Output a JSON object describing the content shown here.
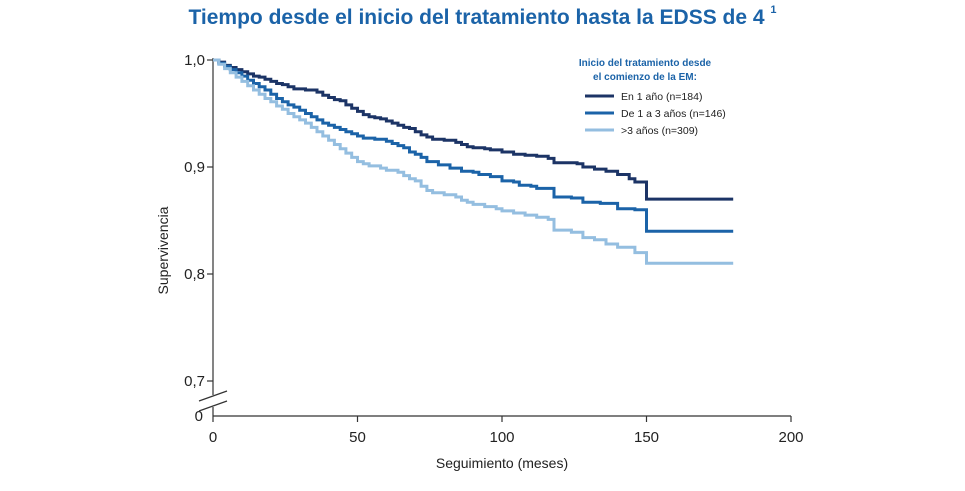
{
  "chart_data": {
    "type": "line",
    "title": "Tiempo desde el inicio del tratamiento hasta la EDSS de 4",
    "title_superscript": "1",
    "xlabel": "Seguimiento (meses)",
    "ylabel": "Supervivencia",
    "xlim": [
      0,
      200
    ],
    "ylim": [
      0.7,
      1.0
    ],
    "y_axis_break": true,
    "x_ticks": [
      "0",
      "50",
      "100",
      "150",
      "200"
    ],
    "y_ticks": [
      "1,0",
      "0,9",
      "0,8",
      "0,7",
      "0"
    ],
    "legend_title_line1": "Inicio del tratamiento desde",
    "legend_title_line2": "el comienzo de la EM:",
    "legend_position": "top-right",
    "grid": false,
    "series": [
      {
        "name": "En 1 año (n=184)",
        "color": "#1c3466",
        "points": [
          [
            0,
            1.0
          ],
          [
            2,
            0.998
          ],
          [
            4,
            0.995
          ],
          [
            6,
            0.993
          ],
          [
            8,
            0.991
          ],
          [
            10,
            0.989
          ],
          [
            12,
            0.987
          ],
          [
            14,
            0.985
          ],
          [
            16,
            0.984
          ],
          [
            18,
            0.982
          ],
          [
            20,
            0.98
          ],
          [
            22,
            0.978
          ],
          [
            24,
            0.977
          ],
          [
            26,
            0.975
          ],
          [
            28,
            0.973
          ],
          [
            32,
            0.972
          ],
          [
            36,
            0.97
          ],
          [
            38,
            0.967
          ],
          [
            40,
            0.965
          ],
          [
            42,
            0.963
          ],
          [
            44,
            0.962
          ],
          [
            46,
            0.958
          ],
          [
            48,
            0.955
          ],
          [
            50,
            0.952
          ],
          [
            52,
            0.949
          ],
          [
            54,
            0.947
          ],
          [
            56,
            0.946
          ],
          [
            58,
            0.945
          ],
          [
            60,
            0.943
          ],
          [
            62,
            0.941
          ],
          [
            64,
            0.939
          ],
          [
            66,
            0.937
          ],
          [
            68,
            0.936
          ],
          [
            70,
            0.933
          ],
          [
            72,
            0.93
          ],
          [
            74,
            0.928
          ],
          [
            76,
            0.926
          ],
          [
            80,
            0.925
          ],
          [
            84,
            0.923
          ],
          [
            86,
            0.921
          ],
          [
            88,
            0.919
          ],
          [
            90,
            0.918
          ],
          [
            94,
            0.917
          ],
          [
            96,
            0.916
          ],
          [
            100,
            0.914
          ],
          [
            104,
            0.912
          ],
          [
            108,
            0.911
          ],
          [
            112,
            0.91
          ],
          [
            116,
            0.908
          ],
          [
            118,
            0.904
          ],
          [
            126,
            0.903
          ],
          [
            128,
            0.9
          ],
          [
            132,
            0.898
          ],
          [
            136,
            0.896
          ],
          [
            140,
            0.893
          ],
          [
            144,
            0.889
          ],
          [
            146,
            0.886
          ],
          [
            150,
            0.87
          ],
          [
            160,
            0.87
          ],
          [
            180,
            0.87
          ]
        ]
      },
      {
        "name": "De 1 a 3 años (n=146)",
        "color": "#1b63a8",
        "points": [
          [
            0,
            1.0
          ],
          [
            2,
            0.997
          ],
          [
            4,
            0.994
          ],
          [
            6,
            0.991
          ],
          [
            8,
            0.988
          ],
          [
            10,
            0.985
          ],
          [
            12,
            0.981
          ],
          [
            14,
            0.978
          ],
          [
            16,
            0.975
          ],
          [
            18,
            0.972
          ],
          [
            20,
            0.968
          ],
          [
            22,
            0.964
          ],
          [
            24,
            0.961
          ],
          [
            26,
            0.958
          ],
          [
            28,
            0.956
          ],
          [
            30,
            0.953
          ],
          [
            32,
            0.95
          ],
          [
            34,
            0.947
          ],
          [
            36,
            0.944
          ],
          [
            38,
            0.941
          ],
          [
            40,
            0.939
          ],
          [
            42,
            0.937
          ],
          [
            44,
            0.935
          ],
          [
            46,
            0.933
          ],
          [
            48,
            0.931
          ],
          [
            50,
            0.929
          ],
          [
            52,
            0.927
          ],
          [
            56,
            0.926
          ],
          [
            60,
            0.924
          ],
          [
            62,
            0.922
          ],
          [
            64,
            0.92
          ],
          [
            66,
            0.918
          ],
          [
            68,
            0.914
          ],
          [
            70,
            0.912
          ],
          [
            72,
            0.909
          ],
          [
            74,
            0.905
          ],
          [
            78,
            0.902
          ],
          [
            82,
            0.899
          ],
          [
            86,
            0.896
          ],
          [
            90,
            0.895
          ],
          [
            92,
            0.893
          ],
          [
            96,
            0.891
          ],
          [
            100,
            0.887
          ],
          [
            104,
            0.886
          ],
          [
            106,
            0.883
          ],
          [
            110,
            0.882
          ],
          [
            112,
            0.88
          ],
          [
            118,
            0.872
          ],
          [
            124,
            0.871
          ],
          [
            128,
            0.867
          ],
          [
            134,
            0.866
          ],
          [
            140,
            0.861
          ],
          [
            146,
            0.86
          ],
          [
            150,
            0.84
          ],
          [
            160,
            0.84
          ],
          [
            180,
            0.84
          ]
        ]
      },
      {
        "name": ">3 años (n=309)",
        "color": "#94bee0",
        "points": [
          [
            0,
            1.0
          ],
          [
            2,
            0.996
          ],
          [
            4,
            0.992
          ],
          [
            6,
            0.988
          ],
          [
            8,
            0.984
          ],
          [
            10,
            0.98
          ],
          [
            12,
            0.976
          ],
          [
            14,
            0.972
          ],
          [
            16,
            0.968
          ],
          [
            18,
            0.964
          ],
          [
            20,
            0.961
          ],
          [
            22,
            0.957
          ],
          [
            24,
            0.954
          ],
          [
            26,
            0.95
          ],
          [
            28,
            0.947
          ],
          [
            30,
            0.944
          ],
          [
            32,
            0.941
          ],
          [
            34,
            0.937
          ],
          [
            36,
            0.933
          ],
          [
            38,
            0.929
          ],
          [
            40,
            0.925
          ],
          [
            42,
            0.921
          ],
          [
            44,
            0.917
          ],
          [
            46,
            0.913
          ],
          [
            48,
            0.909
          ],
          [
            50,
            0.905
          ],
          [
            52,
            0.903
          ],
          [
            54,
            0.901
          ],
          [
            58,
            0.899
          ],
          [
            60,
            0.897
          ],
          [
            64,
            0.895
          ],
          [
            66,
            0.892
          ],
          [
            68,
            0.889
          ],
          [
            70,
            0.887
          ],
          [
            72,
            0.882
          ],
          [
            74,
            0.878
          ],
          [
            76,
            0.876
          ],
          [
            80,
            0.874
          ],
          [
            84,
            0.872
          ],
          [
            86,
            0.869
          ],
          [
            88,
            0.867
          ],
          [
            90,
            0.865
          ],
          [
            94,
            0.863
          ],
          [
            98,
            0.861
          ],
          [
            100,
            0.859
          ],
          [
            104,
            0.857
          ],
          [
            108,
            0.855
          ],
          [
            112,
            0.853
          ],
          [
            116,
            0.851
          ],
          [
            118,
            0.841
          ],
          [
            124,
            0.839
          ],
          [
            128,
            0.834
          ],
          [
            132,
            0.832
          ],
          [
            136,
            0.828
          ],
          [
            140,
            0.825
          ],
          [
            146,
            0.82
          ],
          [
            150,
            0.81
          ],
          [
            160,
            0.81
          ],
          [
            180,
            0.81
          ]
        ]
      }
    ]
  }
}
